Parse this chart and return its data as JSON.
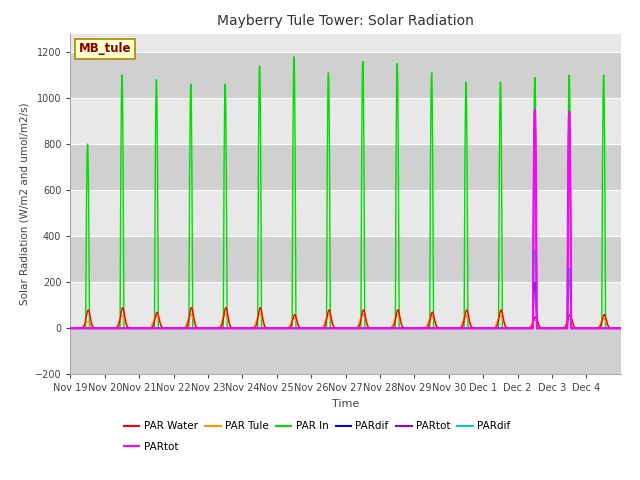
{
  "title": "Mayberry Tule Tower: Solar Radiation",
  "xlabel": "Time",
  "ylabel": "Solar Radiation (W/m2 and umol/m2/s)",
  "ylim": [
    -200,
    1280
  ],
  "yticks": [
    -200,
    0,
    200,
    400,
    600,
    800,
    1000,
    1200
  ],
  "bg_color": "#ffffff",
  "plot_bg_light": "#e8e8e8",
  "plot_bg_dark": "#d0d0d0",
  "grid_color": "#ffffff",
  "title_color": "#333333",
  "watermark_text": "MB_tule",
  "watermark_bg": "#ffffcc",
  "watermark_border": "#aa8800",
  "watermark_text_color": "#880000",
  "series_colors": {
    "PAR Water": "#ff0000",
    "PAR Tule": "#ff9900",
    "PAR In": "#00dd00",
    "PARdif_blue": "#0000ff",
    "PARtot_purple": "#9900cc",
    "PARdif_cyan": "#00cccc",
    "PARtot_magenta": "#ff00ff"
  },
  "n_days": 16,
  "peak_green": [
    800,
    1100,
    1080,
    1060,
    1060,
    1140,
    1180,
    1110,
    1160,
    1150,
    1110,
    1070,
    1070,
    1090,
    1100,
    1100
  ],
  "peak_red": [
    80,
    90,
    70,
    90,
    90,
    90,
    60,
    80,
    80,
    80,
    70,
    80,
    80,
    50,
    60,
    60
  ],
  "peak_orange": [
    30,
    55,
    55,
    60,
    60,
    65,
    45,
    60,
    60,
    55,
    55,
    55,
    55,
    35,
    40,
    40
  ],
  "x_tick_labels": [
    "Nov 19",
    "Nov 20",
    "Nov 21",
    "Nov 22",
    "Nov 23",
    "Nov 24",
    "Nov 25",
    "Nov 26",
    "Nov 27",
    "Nov 28",
    "Nov 29",
    "Nov 30",
    "Dec 1",
    "Dec 2",
    "Dec 3",
    "Dec 4"
  ],
  "special_day_idx": 13,
  "special_peak_blue": 200,
  "special_peak_cyan": 340,
  "special_peak_purple": 950,
  "special_peak_magenta": 950,
  "special2_day_idx": 14,
  "special2_peak_blue": 260,
  "special2_peak_cyan": 260,
  "special2_peak_purple": 940,
  "special2_peak_magenta": 940
}
